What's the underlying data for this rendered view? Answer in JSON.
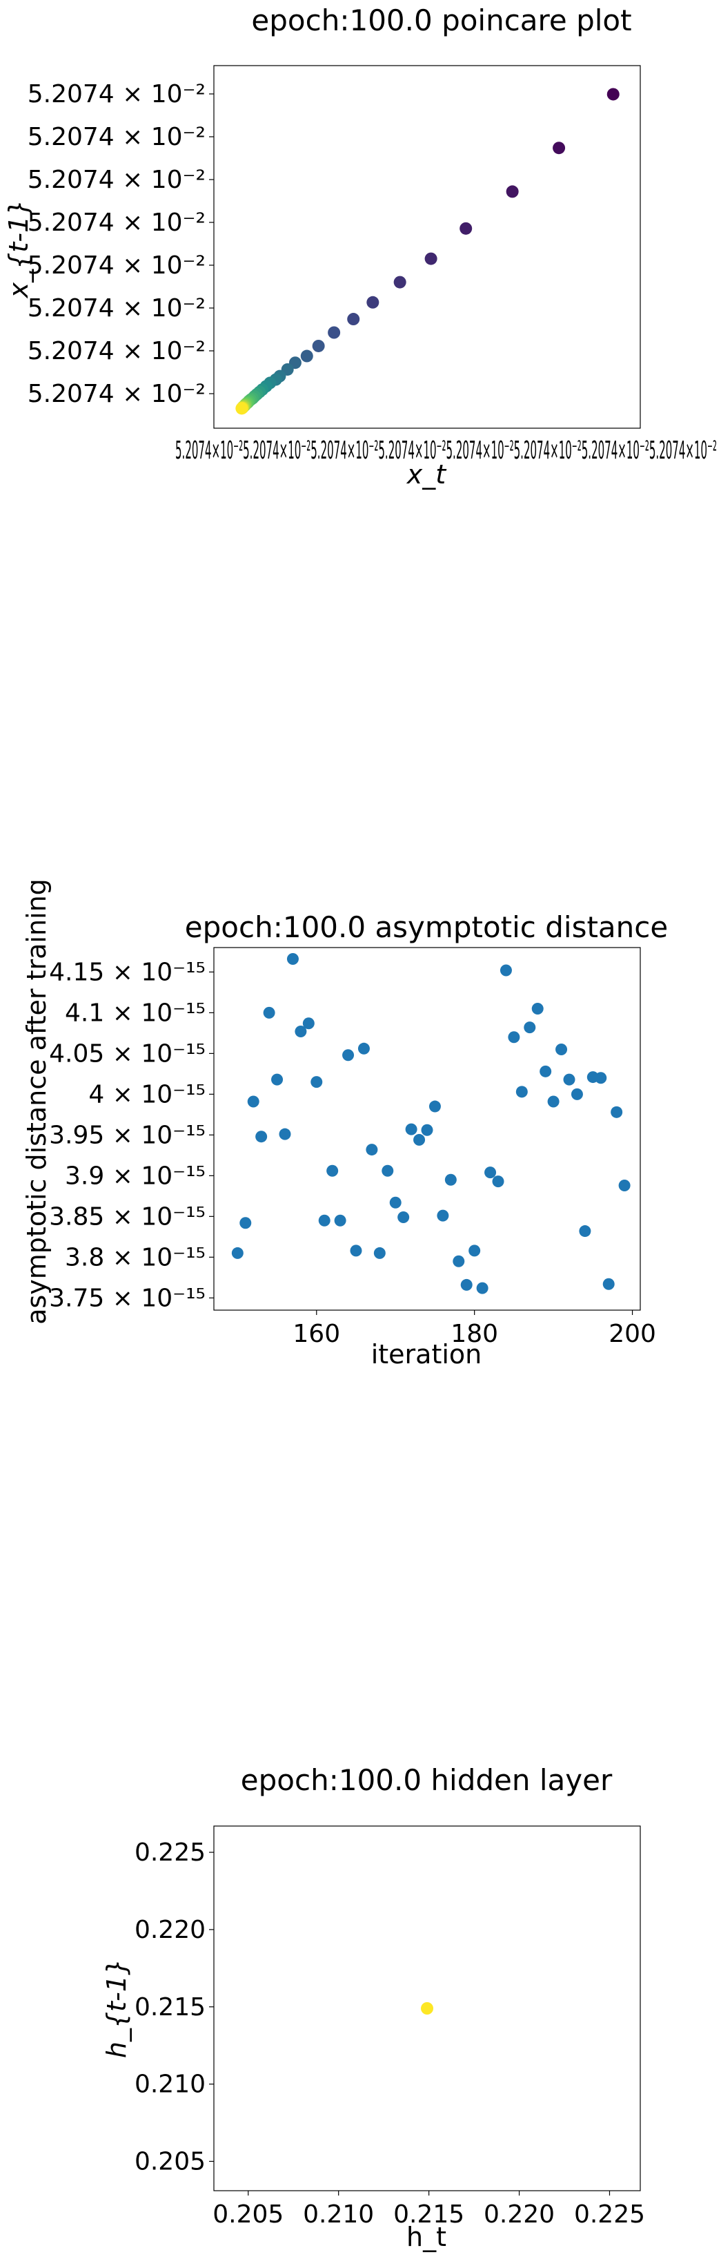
{
  "chart_data": [
    {
      "type": "scatter",
      "title": "epoch:100.0 poincare plot",
      "xlabel": "x_t",
      "ylabel": "x_{t-1}",
      "colormap": "viridis",
      "ytick_labels": [
        "5.2074",
        "5.2074",
        "5.2074",
        "5.2074",
        "5.2074",
        "5.2074",
        "5.2074",
        "5.2074"
      ],
      "tick_suffix": "× 10⁻²",
      "xtick_text": "5.2074×10⁻²5.2074×10⁻²5.2074×10⁻²5.2074×10⁻²5.2074×10⁻²5.2074×10⁻²5.2074×10⁻²5.2074×10⁻²",
      "points": [
        {
          "x": 0.98,
          "y": 0.96
        },
        {
          "x": 0.84,
          "y": 0.8
        },
        {
          "x": 0.72,
          "y": 0.67
        },
        {
          "x": 0.6,
          "y": 0.56
        },
        {
          "x": 0.51,
          "y": 0.47
        },
        {
          "x": 0.43,
          "y": 0.4
        },
        {
          "x": 0.36,
          "y": 0.34
        },
        {
          "x": 0.31,
          "y": 0.29
        },
        {
          "x": 0.26,
          "y": 0.25
        },
        {
          "x": 0.22,
          "y": 0.21
        },
        {
          "x": 0.19,
          "y": 0.18
        },
        {
          "x": 0.16,
          "y": 0.16
        },
        {
          "x": 0.14,
          "y": 0.14
        },
        {
          "x": 0.12,
          "y": 0.12
        },
        {
          "x": 0.11,
          "y": 0.11
        },
        {
          "x": 0.095,
          "y": 0.1
        },
        {
          "x": 0.085,
          "y": 0.09
        },
        {
          "x": 0.075,
          "y": 0.08
        },
        {
          "x": 0.068,
          "y": 0.073
        },
        {
          "x": 0.061,
          "y": 0.066
        },
        {
          "x": 0.055,
          "y": 0.06
        },
        {
          "x": 0.05,
          "y": 0.054
        },
        {
          "x": 0.045,
          "y": 0.05
        },
        {
          "x": 0.041,
          "y": 0.046
        },
        {
          "x": 0.038,
          "y": 0.042
        },
        {
          "x": 0.035,
          "y": 0.039
        },
        {
          "x": 0.032,
          "y": 0.036
        },
        {
          "x": 0.03,
          "y": 0.033
        },
        {
          "x": 0.028,
          "y": 0.031
        },
        {
          "x": 0.026,
          "y": 0.029
        },
        {
          "x": 0.025,
          "y": 0.027
        },
        {
          "x": 0.024,
          "y": 0.026
        },
        {
          "x": 0.023,
          "y": 0.025
        },
        {
          "x": 0.022,
          "y": 0.024
        }
      ],
      "grid": false
    },
    {
      "type": "scatter",
      "title": "epoch:100.0 asymptotic distance",
      "xlabel": "iteration",
      "ylabel": "asymptotic distance after training",
      "color": "#1f77b4",
      "xlim": [
        147,
        201
      ],
      "ylim": [
        3.735e-15,
        4.18e-15
      ],
      "xticks": [
        160,
        180,
        200
      ],
      "yticks": [
        {
          "value": 3.75e-15,
          "label": "3.75 × 10⁻¹⁵"
        },
        {
          "value": 3.8e-15,
          "label": "3.8 × 10⁻¹⁵"
        },
        {
          "value": 3.85e-15,
          "label": "3.85 × 10⁻¹⁵"
        },
        {
          "value": 3.9e-15,
          "label": "3.9 × 10⁻¹⁵"
        },
        {
          "value": 3.95e-15,
          "label": "3.95 × 10⁻¹⁵"
        },
        {
          "value": 4e-15,
          "label": "4 × 10⁻¹⁵"
        },
        {
          "value": 4.05e-15,
          "label": "4.05 × 10⁻¹⁵"
        },
        {
          "value": 4.1e-15,
          "label": "4.1 × 10⁻¹⁵"
        },
        {
          "value": 4.15e-15,
          "label": "4.15 × 10⁻¹⁵"
        }
      ],
      "x": [
        150,
        151,
        152,
        153,
        154,
        155,
        156,
        157,
        158,
        159,
        160,
        161,
        162,
        163,
        164,
        165,
        166,
        167,
        168,
        169,
        170,
        171,
        172,
        173,
        174,
        175,
        176,
        177,
        178,
        179,
        180,
        181,
        182,
        183,
        184,
        185,
        186,
        187,
        188,
        189,
        190,
        191,
        192,
        193,
        194,
        195,
        196,
        197,
        198,
        199
      ],
      "y": [
        3.805e-15,
        3.842e-15,
        3.991e-15,
        3.948e-15,
        4.1e-15,
        4.018e-15,
        3.951e-15,
        4.166e-15,
        4.077e-15,
        4.087e-15,
        4.015e-15,
        3.845e-15,
        3.906e-15,
        3.845e-15,
        4.048e-15,
        3.808e-15,
        4.056e-15,
        3.932e-15,
        3.805e-15,
        3.906e-15,
        3.867e-15,
        3.849e-15,
        3.957e-15,
        3.944e-15,
        3.956e-15,
        3.985e-15,
        3.851e-15,
        3.895e-15,
        3.795e-15,
        3.766e-15,
        3.808e-15,
        3.762e-15,
        3.904e-15,
        3.893e-15,
        4.152e-15,
        4.07e-15,
        4.003e-15,
        4.082e-15,
        4.105e-15,
        4.028e-15,
        3.991e-15,
        4.055e-15,
        4.018e-15,
        4e-15,
        3.832e-15,
        4.021e-15,
        4.02e-15,
        3.767e-15,
        3.978e-15,
        3.888e-15
      ],
      "grid": false
    },
    {
      "type": "scatter",
      "title": "epoch:100.0 hidden layer",
      "xlabel": "h_t",
      "ylabel": "h_{t-1}",
      "color": "#fde725",
      "xlim": [
        0.2031,
        0.2267
      ],
      "ylim": [
        0.2031,
        0.2267
      ],
      "xticks": [
        "0.205",
        "0.210",
        "0.215",
        "0.220",
        "0.225"
      ],
      "yticks": [
        "0.205",
        "0.210",
        "0.215",
        "0.220",
        "0.225"
      ],
      "points": [
        {
          "x": 0.2149,
          "y": 0.2149
        }
      ],
      "grid": false
    }
  ]
}
